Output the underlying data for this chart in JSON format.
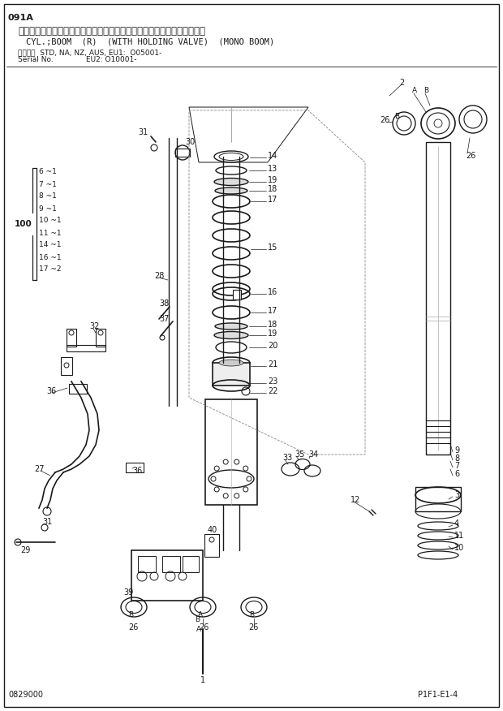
{
  "title_line1": "091A",
  "title_line2": "シリンダ；ブーム（右）　（ホールディングバルブ付）　（モノブーム）",
  "title_line3": "CYL.;BOOM  (R)  (WITH HOLDING VALVE)  (MONO BOOM)",
  "subtitle1": "適用号機  STD, NA, NZ, AUS, EU1:  O05001-",
  "subtitle2": "Serial No.              EU2: O10001-",
  "bottom_left": "0829000",
  "bottom_right": "P1F1-E1-4",
  "bg_color": "#ffffff",
  "line_color": "#1a1a1a",
  "text_color": "#1a1a1a"
}
